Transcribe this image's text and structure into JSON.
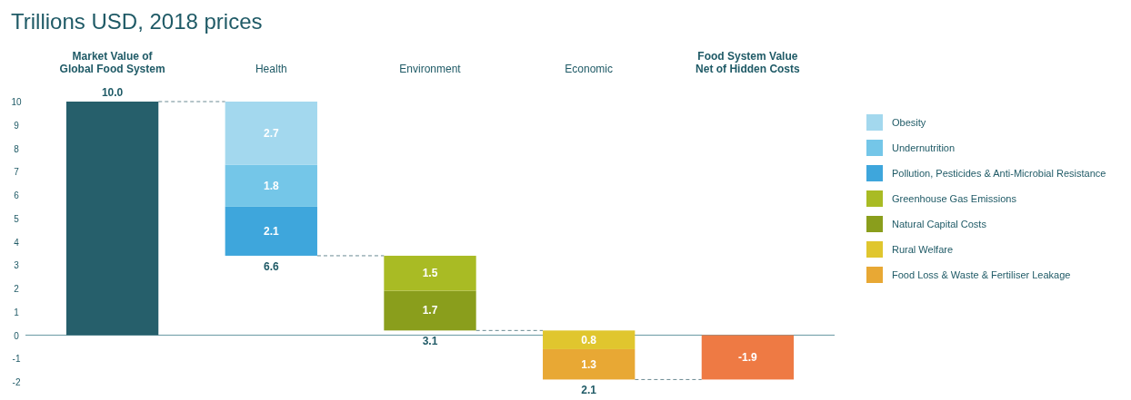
{
  "chart_data": {
    "type": "bar",
    "title": "Trillions USD, 2018 prices",
    "categories": [
      "Market Value of\nGlobal Food System",
      "Health",
      "Environment",
      "Economic",
      "Food System Value\nNet of Hidden Costs"
    ],
    "series": [
      {
        "color": "#265f6b",
        "values": [
          10.0,
          null,
          null,
          null,
          null
        ],
        "value_labels": [
          "10.0",
          null,
          null,
          null,
          null
        ]
      },
      {
        "name": "Pollution, Pesticides & Anti-Microbial Resistance",
        "color": "#3ea6dc",
        "base": [
          null,
          3.4,
          null,
          null,
          null
        ],
        "values": [
          null,
          2.1,
          null,
          null,
          null
        ],
        "value_labels": [
          null,
          "2.1",
          null,
          null,
          null
        ]
      },
      {
        "name": "Undernutrition",
        "color": "#74c6e8",
        "base": [
          null,
          5.5,
          null,
          null,
          null
        ],
        "values": [
          null,
          1.8,
          null,
          null,
          null
        ],
        "value_labels": [
          null,
          "1.8",
          null,
          null,
          null
        ]
      },
      {
        "name": "Obesity",
        "color": "#a3d8ee",
        "base": [
          null,
          7.3,
          null,
          null,
          null
        ],
        "values": [
          null,
          2.7,
          null,
          null,
          null
        ],
        "value_labels": [
          null,
          "2.7",
          null,
          null,
          null
        ]
      },
      {
        "name": "Natural Capital Costs",
        "color": "#8a9e1c",
        "base": [
          null,
          null,
          0.2,
          null,
          null
        ],
        "values": [
          null,
          null,
          1.7,
          null,
          null
        ],
        "value_labels": [
          null,
          null,
          "1.7",
          null,
          null
        ]
      },
      {
        "name": "Greenhouse Gas Emissions",
        "color": "#a9bb24",
        "base": [
          null,
          null,
          1.9,
          null,
          null
        ],
        "values": [
          null,
          null,
          1.5,
          null,
          null
        ],
        "value_labels": [
          null,
          null,
          "1.5",
          null,
          null
        ]
      },
      {
        "name": "Food Loss & Waste & Fertiliser Leakage",
        "color": "#e8a834",
        "base": [
          null,
          null,
          null,
          -1.9,
          null
        ],
        "values": [
          null,
          null,
          null,
          1.3,
          null
        ],
        "value_labels": [
          null,
          null,
          null,
          "1.3",
          null
        ]
      },
      {
        "name": "Rural Welfare",
        "color": "#e0c62e",
        "base": [
          null,
          null,
          null,
          -0.6,
          null
        ],
        "values": [
          null,
          null,
          null,
          0.8,
          null
        ],
        "value_labels": [
          null,
          null,
          null,
          "0.8",
          null
        ]
      },
      {
        "color": "#ee7a44",
        "values": [
          null,
          null,
          null,
          null,
          -1.9
        ],
        "value_labels": [
          null,
          null,
          null,
          null,
          "-1.9"
        ]
      }
    ],
    "annotations": [
      {
        "text": "6.6",
        "x": "Health",
        "y": 3.4
      },
      {
        "text": "3.1",
        "x": "Environment",
        "y": 0.2
      },
      {
        "text": "2.1",
        "x": "Economic",
        "y": -1.9
      }
    ],
    "ref_lines": [
      {
        "axis": "y",
        "value": 0,
        "color": "#6a9aa4"
      }
    ],
    "ylim": [
      -2,
      10
    ],
    "yticks": [
      -2,
      -1,
      0,
      1,
      2,
      3,
      4,
      5,
      6,
      7,
      8,
      9,
      10
    ],
    "grid": false,
    "legend": "right"
  }
}
